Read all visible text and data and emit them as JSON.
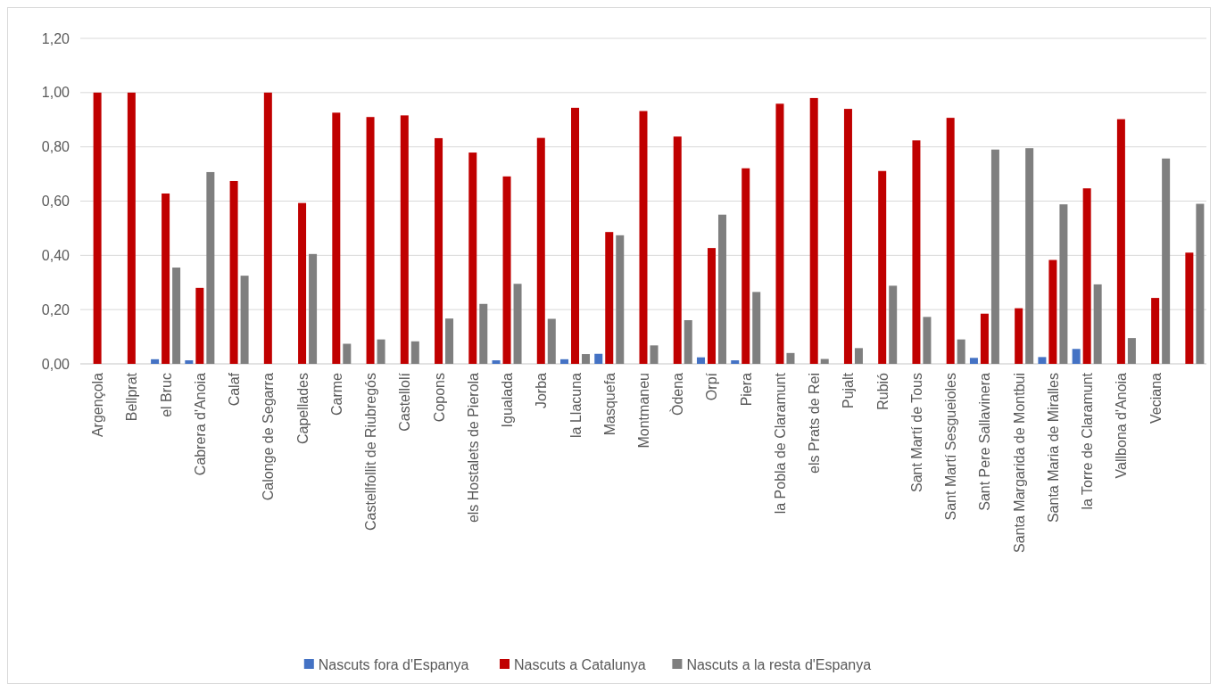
{
  "chart_data": {
    "type": "bar",
    "categories": [
      "Argençola",
      "Bellprat",
      "el Bruc",
      "Cabrera d'Anoia",
      "Calaf",
      "Calonge de Segarra",
      "Capellades",
      "Carme",
      "Castellfollit de Riubregós",
      "Castellolí",
      "Copons",
      "els Hostalets de Pierola",
      "Igualada",
      "Jorba",
      "la Llacuna",
      "Masquefa",
      "Montmaneu",
      "Òdena",
      "Orpí",
      "Piera",
      "la Pobla de Claramunt",
      "els Prats de Rei",
      "Pujalt",
      "Rubió",
      "Sant Martí de Tous",
      "Sant Martí Sesgueioles",
      "Sant Pere Sallavinera",
      "Santa Margarida de Montbui",
      "Santa Maria de Miralles",
      "la Torre de Claramunt",
      "Vallbona d'Anoia",
      "Veciana",
      null
    ],
    "series": [
      {
        "name": "Nascuts fora d'Espanya",
        "color": "#4472c4",
        "values": [
          0,
          0,
          0.017,
          0.013,
          0,
          0,
          0,
          0,
          0,
          0,
          0,
          0,
          0.013,
          0,
          0.017,
          0.037,
          0,
          0,
          0.024,
          0.013,
          0,
          0,
          0,
          0,
          0,
          0,
          0.022,
          0,
          0.025,
          0.055,
          0,
          0,
          0
        ]
      },
      {
        "name": "Nascuts a Catalunya",
        "color": "#c00000",
        "values": [
          1.0,
          1.0,
          0.628,
          0.28,
          0.674,
          1.0,
          0.593,
          0.926,
          0.91,
          0.916,
          0.832,
          0.779,
          0.691,
          0.833,
          0.944,
          0.486,
          0.932,
          0.838,
          0.427,
          0.721,
          0.959,
          0.98,
          0.94,
          0.711,
          0.824,
          0.907,
          0.185,
          0.205,
          0.383,
          0.647,
          0.902,
          0.243,
          0.41
        ]
      },
      {
        "name": "Nascuts a la resta d'Espanya",
        "color": "#7f7f7f",
        "values": [
          0,
          0,
          0.355,
          0.707,
          0.325,
          0,
          0.405,
          0.074,
          0.09,
          0.083,
          0.167,
          0.221,
          0.295,
          0.166,
          0.036,
          0.474,
          0.068,
          0.161,
          0.55,
          0.265,
          0.04,
          0.018,
          0.058,
          0.288,
          0.173,
          0.09,
          0.79,
          0.795,
          0.588,
          0.293,
          0.095,
          0.757,
          0.59
        ]
      }
    ],
    "ylim": [
      0,
      1.2
    ],
    "yticks": [
      {
        "value": 0,
        "label": "0,00"
      },
      {
        "value": 0.2,
        "label": "0,20"
      },
      {
        "value": 0.4,
        "label": "0,40"
      },
      {
        "value": 0.6,
        "label": "0,60"
      },
      {
        "value": 0.8,
        "label": "0,80"
      },
      {
        "value": 1,
        "label": "1,00"
      },
      {
        "value": 1.2,
        "label": "1,20"
      }
    ],
    "grid": "y",
    "legend": "bottom"
  }
}
